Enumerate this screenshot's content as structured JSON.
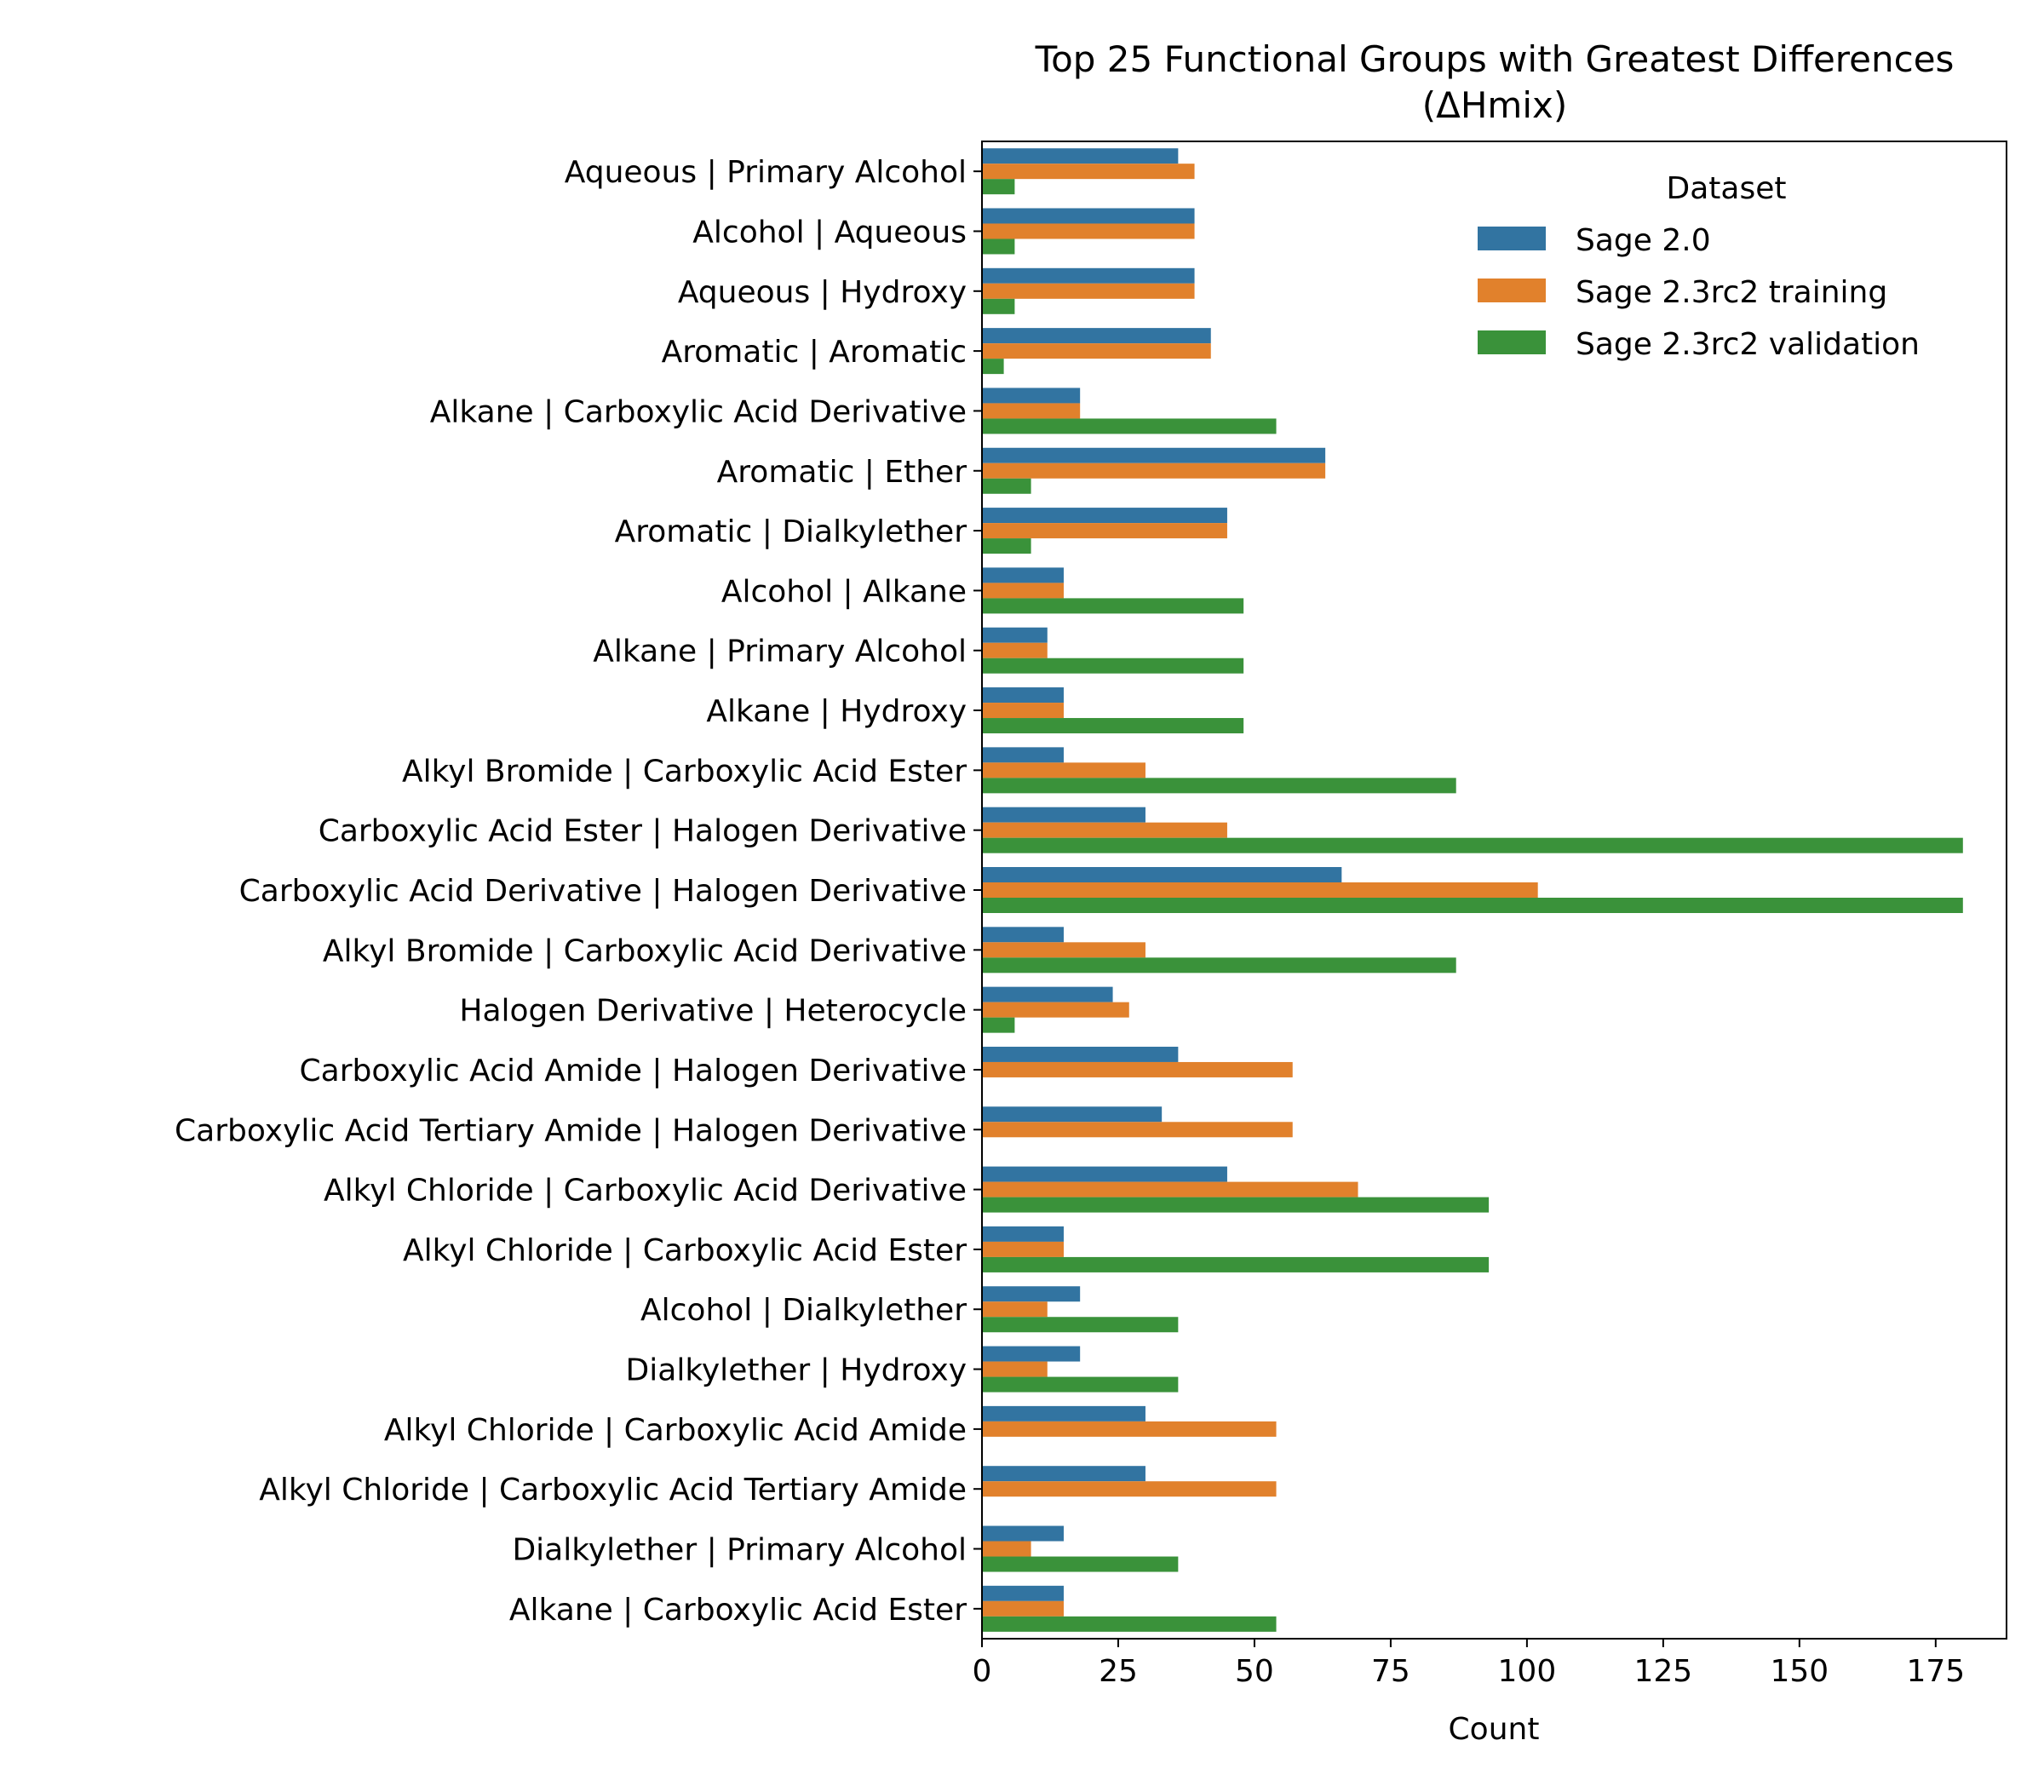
{
  "chart_data": {
    "type": "bar",
    "orientation": "horizontal",
    "title": "Top 25 Functional Groups with Greatest Differences",
    "subtitle": "(ΔHmix)",
    "xlabel": "Count",
    "ylabel": "",
    "xlim": [
      0,
      188
    ],
    "xticks": [
      0,
      25,
      50,
      75,
      100,
      125,
      150,
      175
    ],
    "grid": false,
    "legend": {
      "title": "Dataset",
      "placement": "top-right"
    },
    "categories": [
      "Aqueous | Primary Alcohol",
      "Alcohol | Aqueous",
      "Aqueous | Hydroxy",
      "Aromatic | Aromatic",
      "Alkane | Carboxylic Acid Derivative",
      "Aromatic | Ether",
      "Aromatic | Dialkylether",
      "Alcohol | Alkane",
      "Alkane | Primary Alcohol",
      "Alkane | Hydroxy",
      "Alkyl Bromide | Carboxylic Acid Ester",
      "Carboxylic Acid Ester | Halogen Derivative",
      "Carboxylic Acid Derivative | Halogen Derivative",
      "Alkyl Bromide | Carboxylic Acid Derivative",
      "Halogen Derivative | Heterocycle",
      "Carboxylic Acid Amide | Halogen Derivative",
      "Carboxylic Acid Tertiary Amide | Halogen Derivative",
      "Alkyl Chloride | Carboxylic Acid Derivative",
      "Alkyl Chloride | Carboxylic Acid Ester",
      "Alcohol | Dialkylether",
      "Dialkylether | Hydroxy",
      "Alkyl Chloride | Carboxylic Acid Amide",
      "Alkyl Chloride | Carboxylic Acid Tertiary Amide",
      "Dialkylether | Primary Alcohol",
      "Alkane | Carboxylic Acid Ester"
    ],
    "series": [
      {
        "name": "Sage 2.0",
        "color": "#3274a1",
        "values": [
          36,
          39,
          39,
          42,
          18,
          63,
          45,
          15,
          12,
          15,
          15,
          30,
          66,
          15,
          24,
          36,
          33,
          45,
          15,
          18,
          18,
          30,
          30,
          15,
          15
        ]
      },
      {
        "name": "Sage 2.3rc2 training",
        "color": "#e1812c",
        "values": [
          39,
          39,
          39,
          42,
          18,
          63,
          45,
          15,
          12,
          15,
          30,
          45,
          102,
          30,
          27,
          57,
          57,
          69,
          15,
          12,
          12,
          54,
          54,
          9,
          15
        ]
      },
      {
        "name": "Sage 2.3rc2 validation",
        "color": "#3a923a",
        "values": [
          6,
          6,
          6,
          4,
          54,
          9,
          9,
          48,
          48,
          48,
          87,
          180,
          180,
          87,
          6,
          0,
          0,
          93,
          93,
          36,
          36,
          0,
          0,
          36,
          54
        ]
      }
    ]
  }
}
